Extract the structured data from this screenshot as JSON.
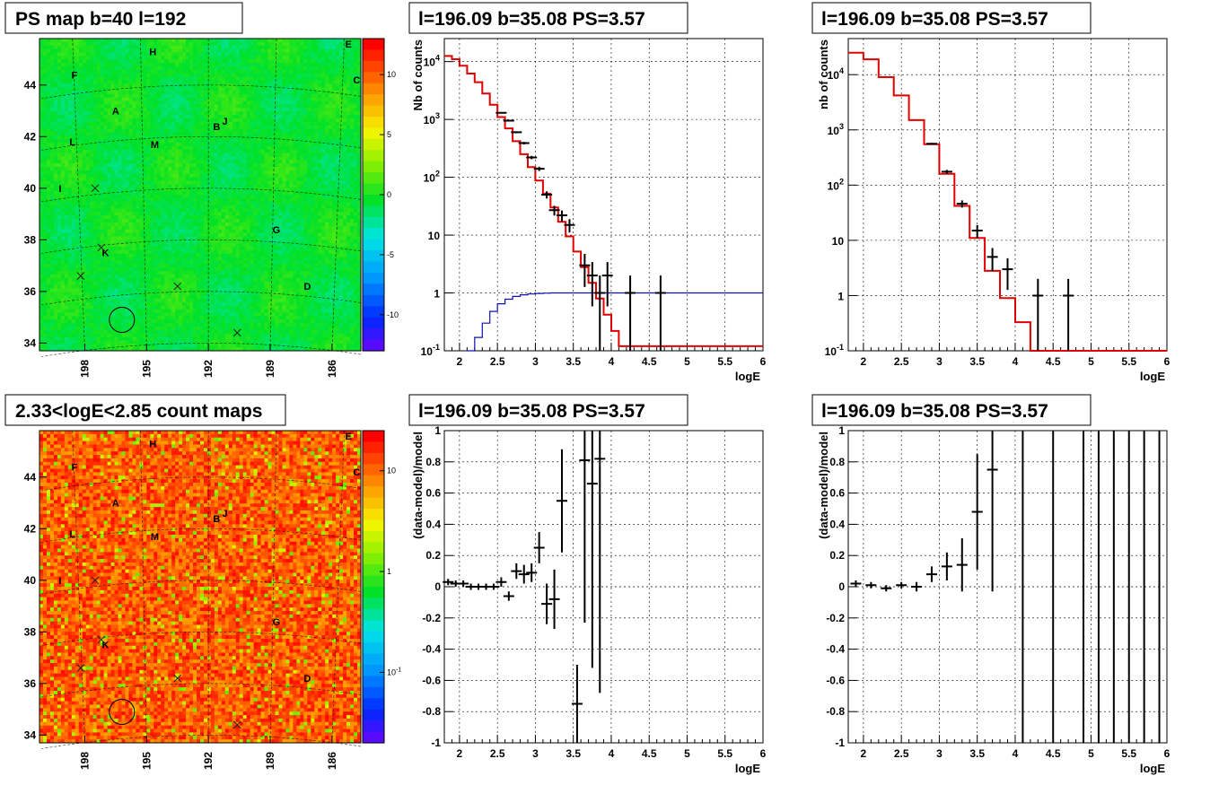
{
  "chart_data": [
    {
      "type": "heatmap",
      "title": "PS map b=40 l=192",
      "x_ticks": [
        "198",
        "195",
        "192",
        "189",
        "186"
      ],
      "y_ticks": [
        "34",
        "36",
        "38",
        "40",
        "42",
        "44"
      ],
      "z_ticks": [
        "-10",
        "-5",
        "0",
        "5",
        "10"
      ],
      "zlim": [
        -13,
        13
      ],
      "sources": [
        {
          "label": "A",
          "l": 196.5,
          "b": 43.0
        },
        {
          "label": "B",
          "l": 191.6,
          "b": 42.4
        },
        {
          "label": "C",
          "l": 184.8,
          "b": 44.2
        },
        {
          "label": "D",
          "l": 187.2,
          "b": 36.2
        },
        {
          "label": "E",
          "l": 185.2,
          "b": 45.6
        },
        {
          "label": "F",
          "l": 198.5,
          "b": 44.4
        },
        {
          "label": "G",
          "l": 188.7,
          "b": 38.4
        },
        {
          "label": "H",
          "l": 194.7,
          "b": 45.3
        },
        {
          "label": "I",
          "l": 199.2,
          "b": 40.0
        },
        {
          "label": "J",
          "l": 191.2,
          "b": 42.6
        },
        {
          "label": "K",
          "l": 197.0,
          "b": 37.5
        },
        {
          "label": "L",
          "l": 198.6,
          "b": 41.8
        },
        {
          "label": "M",
          "l": 194.6,
          "b": 41.7
        }
      ],
      "markers": [
        [
          197.5,
          40.0
        ],
        [
          197.2,
          37.7
        ],
        [
          198.2,
          36.6
        ],
        [
          193.5,
          36.2
        ],
        [
          190.6,
          34.4
        ]
      ],
      "circle": {
        "l": 196.2,
        "b": 34.9
      }
    },
    {
      "type": "line",
      "title": "l=196.09 b=35.08 PS=3.57",
      "xlabel": "logE",
      "ylabel": "Nb of counts",
      "xlim": [
        1.8,
        6.0
      ],
      "ylim": [
        0.1,
        25000
      ],
      "yscale": "log",
      "x_ticks": [
        "2",
        "2.5",
        "3",
        "3.5",
        "4",
        "4.5",
        "5",
        "5.5",
        "6"
      ],
      "y_ticks": [
        "10^-1",
        "1",
        "10",
        "10^2",
        "10^3",
        "10^4"
      ],
      "model_steps": [
        [
          1.8,
          12500
        ],
        [
          1.9,
          11000
        ],
        [
          2.0,
          8500
        ],
        [
          2.1,
          6200
        ],
        [
          2.2,
          4400
        ],
        [
          2.3,
          2800
        ],
        [
          2.4,
          1800
        ],
        [
          2.5,
          1100
        ],
        [
          2.6,
          700
        ],
        [
          2.7,
          420
        ],
        [
          2.8,
          250
        ],
        [
          2.9,
          150
        ],
        [
          3.0,
          88
        ],
        [
          3.1,
          52
        ],
        [
          3.2,
          30
        ],
        [
          3.3,
          17
        ],
        [
          3.4,
          9.5
        ],
        [
          3.5,
          5.2
        ],
        [
          3.6,
          2.8
        ],
        [
          3.7,
          1.5
        ],
        [
          3.8,
          0.8
        ],
        [
          3.9,
          0.42
        ],
        [
          4.0,
          0.22
        ],
        [
          4.1,
          0.12
        ],
        [
          6.0,
          0.12
        ]
      ],
      "efficiency_steps": [
        [
          2.1,
          0.1
        ],
        [
          2.2,
          0.17
        ],
        [
          2.3,
          0.3
        ],
        [
          2.4,
          0.48
        ],
        [
          2.5,
          0.65
        ],
        [
          2.6,
          0.78
        ],
        [
          2.7,
          0.87
        ],
        [
          2.8,
          0.93
        ],
        [
          2.9,
          0.96
        ],
        [
          3.0,
          0.98
        ],
        [
          3.1,
          0.99
        ],
        [
          3.2,
          1.0
        ],
        [
          6.0,
          1.0
        ]
      ],
      "data_points": [
        [
          2.55,
          1300
        ],
        [
          2.65,
          950
        ],
        [
          2.75,
          600
        ],
        [
          2.85,
          390
        ],
        [
          2.95,
          220
        ],
        [
          3.05,
          140
        ],
        [
          3.15,
          50
        ],
        [
          3.25,
          27
        ],
        [
          3.35,
          22
        ],
        [
          3.45,
          15
        ],
        [
          3.65,
          3
        ],
        [
          3.75,
          2
        ],
        [
          3.85,
          1
        ],
        [
          3.95,
          2
        ],
        [
          4.25,
          1
        ],
        [
          4.65,
          1
        ]
      ]
    },
    {
      "type": "line",
      "title": "l=196.09 b=35.08 PS=3.57",
      "xlabel": "logE",
      "ylabel": "nb of counts",
      "xlim": [
        1.8,
        6.0
      ],
      "ylim": [
        0.1,
        45000
      ],
      "yscale": "log",
      "x_ticks": [
        "2",
        "2.5",
        "3",
        "3.5",
        "4",
        "4.5",
        "5",
        "5.5",
        "6"
      ],
      "y_ticks": [
        "10^-1",
        "1",
        "10",
        "10^2",
        "10^3",
        "10^4"
      ],
      "model_steps": [
        [
          1.8,
          25000
        ],
        [
          2.0,
          19000
        ],
        [
          2.2,
          9000
        ],
        [
          2.4,
          4200
        ],
        [
          2.6,
          1500
        ],
        [
          2.8,
          550
        ],
        [
          3.0,
          160
        ],
        [
          3.2,
          42
        ],
        [
          3.4,
          11
        ],
        [
          3.6,
          2.8
        ],
        [
          3.8,
          0.9
        ],
        [
          4.0,
          0.33
        ],
        [
          4.2,
          0.1
        ],
        [
          6.0,
          0.1
        ]
      ],
      "data_points": [
        [
          2.9,
          560
        ],
        [
          3.1,
          175
        ],
        [
          3.3,
          46
        ],
        [
          3.5,
          15
        ],
        [
          3.7,
          5
        ],
        [
          3.9,
          3
        ],
        [
          4.3,
          1
        ],
        [
          4.7,
          1
        ]
      ]
    },
    {
      "type": "heatmap",
      "title": "2.33<logE<2.85 count maps",
      "x_ticks": [
        "198",
        "195",
        "192",
        "189",
        "186"
      ],
      "y_ticks": [
        "34",
        "36",
        "38",
        "40",
        "42",
        "44"
      ],
      "z_ticks": [
        "10",
        "1",
        "10^-1"
      ]
    },
    {
      "type": "scatter",
      "title": "l=196.09 b=35.08 PS=3.57",
      "xlabel": "logE",
      "ylabel": "(data-model)/model",
      "xlim": [
        1.8,
        6.0
      ],
      "ylim": [
        -1,
        1
      ],
      "x_ticks": [
        "2",
        "2.5",
        "3",
        "3.5",
        "4",
        "4.5",
        "5",
        "5.5",
        "6"
      ],
      "y_ticks": [
        "-1",
        "-0.8",
        "-0.6",
        "-0.4",
        "-0.2",
        "0",
        "0.2",
        "0.4",
        "0.6",
        "0.8",
        "1"
      ],
      "points": [
        [
          1.85,
          0.03,
          0.02
        ],
        [
          1.95,
          0.02,
          0.02
        ],
        [
          2.05,
          0.02,
          0.02
        ],
        [
          2.15,
          0.0,
          0.02
        ],
        [
          2.25,
          0.0,
          0.02
        ],
        [
          2.35,
          0.0,
          0.02
        ],
        [
          2.45,
          0.0,
          0.02
        ],
        [
          2.55,
          0.03,
          0.03
        ],
        [
          2.65,
          -0.06,
          0.03
        ],
        [
          2.75,
          0.1,
          0.05
        ],
        [
          2.85,
          0.08,
          0.06
        ],
        [
          2.95,
          0.09,
          0.06
        ],
        [
          3.05,
          0.25,
          0.1
        ],
        [
          3.15,
          -0.11,
          0.13
        ],
        [
          3.25,
          -0.08,
          0.19
        ],
        [
          3.35,
          0.55,
          0.33
        ],
        [
          3.55,
          -0.75,
          0.25
        ],
        [
          3.65,
          0.81,
          1.04
        ],
        [
          3.75,
          0.66,
          1.18
        ],
        [
          3.85,
          0.82,
          1.5
        ]
      ]
    },
    {
      "type": "scatter",
      "title": "l=196.09 b=35.08 PS=3.57",
      "xlabel": "logE",
      "ylabel": "(data-model)/model",
      "xlim": [
        1.8,
        6.0
      ],
      "ylim": [
        -1,
        1
      ],
      "x_ticks": [
        "2",
        "2.5",
        "3",
        "3.5",
        "4",
        "4.5",
        "5",
        "5.5",
        "6"
      ],
      "y_ticks": [
        "-1",
        "-0.8",
        "-0.6",
        "-0.4",
        "-0.2",
        "0",
        "0.2",
        "0.4",
        "0.6",
        "0.8",
        "1"
      ],
      "points": [
        [
          1.9,
          0.02,
          0.02
        ],
        [
          2.1,
          0.01,
          0.02
        ],
        [
          2.3,
          -0.01,
          0.02
        ],
        [
          2.5,
          0.01,
          0.02
        ],
        [
          2.7,
          0.0,
          0.03
        ],
        [
          2.9,
          0.08,
          0.05
        ],
        [
          3.1,
          0.13,
          0.09
        ],
        [
          3.3,
          0.14,
          0.17
        ],
        [
          3.5,
          0.48,
          0.37
        ],
        [
          3.7,
          0.75,
          0.78
        ]
      ],
      "vlines": [
        4.1,
        4.5,
        4.9,
        5.1,
        5.3,
        5.5,
        5.7,
        5.9
      ]
    }
  ]
}
